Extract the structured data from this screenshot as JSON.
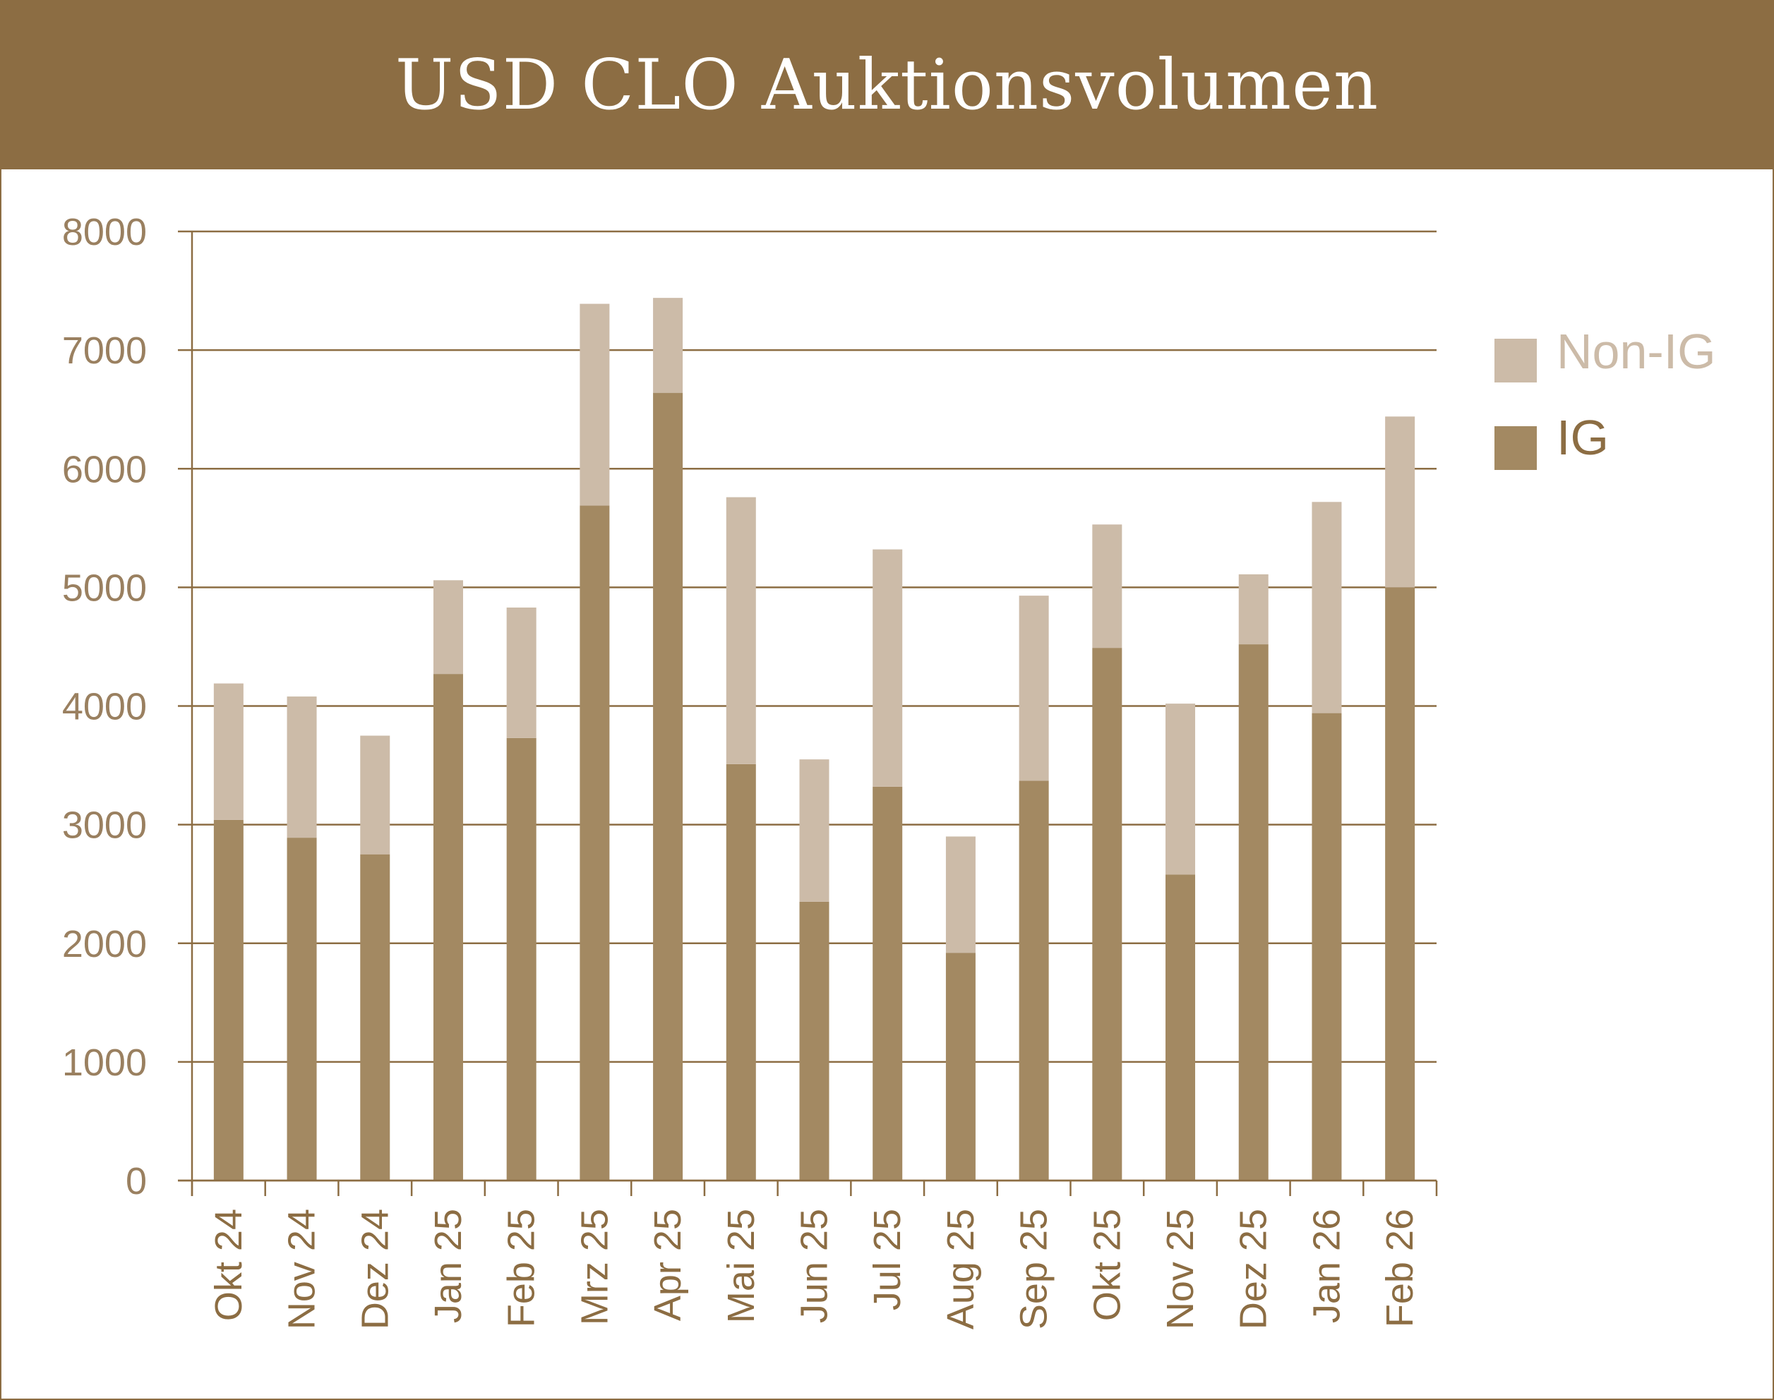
{
  "header": {
    "title": "USD CLO Auktionsvolumen"
  },
  "colors": {
    "ig": "#a38962",
    "non_ig": "#ccbba8",
    "header_bg": "#8c6d43",
    "axis": "#8c6d43",
    "legend_non_ig_text": "#ccbba8",
    "legend_ig_text": "#8c6d43"
  },
  "chart_data": {
    "type": "bar",
    "stacked": true,
    "title": "USD CLO Auktionsvolumen",
    "xlabel": "",
    "ylabel": "",
    "ylim": [
      0,
      8000
    ],
    "yticks": [
      0,
      1000,
      2000,
      3000,
      4000,
      5000,
      6000,
      7000,
      8000
    ],
    "grid": true,
    "legend_position": "right",
    "categories": [
      "Okt 24",
      "Nov 24",
      "Dez 24",
      "Jan 25",
      "Feb 25",
      "Mrz 25",
      "Apr 25",
      "Mai 25",
      "Jun 25",
      "Jul 25",
      "Aug 25",
      "Sep 25",
      "Okt 25",
      "Nov 25",
      "Dez 25",
      "Jan 26",
      "Feb 26"
    ],
    "series": [
      {
        "name": "IG",
        "values": [
          3040,
          2890,
          2750,
          4270,
          3730,
          5690,
          6640,
          3510,
          2350,
          3320,
          1920,
          3370,
          4490,
          2580,
          4520,
          3940,
          5000
        ]
      },
      {
        "name": "Non-IG",
        "values": [
          1150,
          1190,
          1000,
          790,
          1100,
          1700,
          800,
          2250,
          1200,
          2000,
          980,
          1560,
          1040,
          1440,
          590,
          1780,
          1440
        ]
      }
    ]
  }
}
